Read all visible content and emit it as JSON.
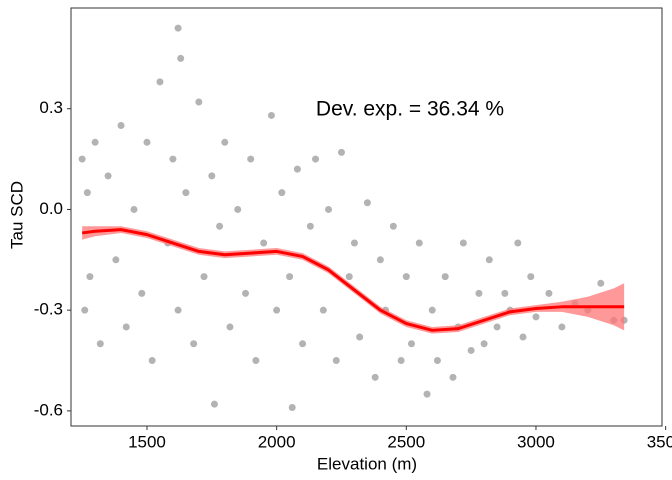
{
  "chart_data": {
    "type": "scatter",
    "annotation": "Dev. exp. = 36.34 %",
    "x_label": "Elevation (m)",
    "y_label": "Tau SCD",
    "xlim": [
      1207,
      3486
    ],
    "ylim": [
      -0.645,
      0.6
    ],
    "xticks": [
      1500,
      2000,
      2500,
      3000,
      3500
    ],
    "yticks": [
      0.3,
      {
        "value": 0,
        "label": "0.0"
      },
      -0.3,
      -0.6
    ],
    "grid": false,
    "points": {
      "color": "#b3b3b3",
      "x": [
        1250,
        1260,
        1270,
        1280,
        1300,
        1320,
        1350,
        1380,
        1400,
        1420,
        1450,
        1480,
        1500,
        1520,
        1550,
        1580,
        1600,
        1620,
        1620,
        1630,
        1650,
        1680,
        1700,
        1720,
        1750,
        1760,
        1780,
        1800,
        1820,
        1850,
        1880,
        1900,
        1920,
        1950,
        1980,
        2000,
        2020,
        2050,
        2060,
        2080,
        2100,
        2130,
        2150,
        2180,
        2200,
        2230,
        2250,
        2280,
        2300,
        2320,
        2350,
        2380,
        2400,
        2420,
        2450,
        2480,
        2500,
        2520,
        2550,
        2580,
        2600,
        2620,
        2650,
        2680,
        2700,
        2720,
        2750,
        2780,
        2800,
        2820,
        2850,
        2880,
        2900,
        2930,
        2950,
        2980,
        3000,
        3050,
        3100,
        3150,
        3200,
        3250,
        3300,
        3340
      ],
      "y": [
        0.15,
        -0.3,
        0.05,
        -0.2,
        0.2,
        -0.4,
        0.1,
        -0.15,
        0.25,
        -0.35,
        0.0,
        -0.25,
        0.2,
        -0.45,
        0.38,
        -0.1,
        0.15,
        0.54,
        -0.3,
        0.45,
        0.05,
        -0.4,
        0.32,
        -0.2,
        0.1,
        -0.58,
        -0.05,
        0.2,
        -0.35,
        0.0,
        -0.25,
        0.15,
        -0.45,
        -0.1,
        0.28,
        -0.3,
        0.05,
        -0.2,
        -0.59,
        0.12,
        -0.4,
        -0.05,
        0.15,
        -0.3,
        0.0,
        -0.45,
        0.17,
        -0.2,
        -0.1,
        -0.38,
        0.02,
        -0.5,
        -0.15,
        -0.3,
        -0.05,
        -0.45,
        -0.2,
        -0.4,
        -0.1,
        -0.55,
        -0.3,
        -0.45,
        -0.2,
        -0.5,
        -0.35,
        -0.1,
        -0.42,
        -0.25,
        -0.4,
        -0.15,
        -0.35,
        -0.25,
        -0.3,
        -0.1,
        -0.38,
        -0.2,
        -0.32,
        -0.25,
        -0.35,
        -0.28,
        -0.3,
        -0.22,
        -0.33,
        -0.33
      ]
    },
    "smooth": {
      "color": "#ff0000",
      "band_color": "#f77",
      "x": [
        1250,
        1300,
        1400,
        1500,
        1600,
        1700,
        1800,
        1900,
        2000,
        2100,
        2200,
        2300,
        2400,
        2500,
        2600,
        2700,
        2800,
        2900,
        3000,
        3100,
        3200,
        3300,
        3340
      ],
      "y": [
        -0.07,
        -0.065,
        -0.06,
        -0.075,
        -0.1,
        -0.125,
        -0.135,
        -0.13,
        -0.125,
        -0.14,
        -0.18,
        -0.24,
        -0.3,
        -0.34,
        -0.36,
        -0.355,
        -0.33,
        -0.305,
        -0.295,
        -0.29,
        -0.29,
        -0.29,
        -0.29
      ],
      "lower": [
        -0.09,
        -0.08,
        -0.07,
        -0.085,
        -0.11,
        -0.135,
        -0.145,
        -0.14,
        -0.135,
        -0.15,
        -0.19,
        -0.25,
        -0.31,
        -0.35,
        -0.37,
        -0.365,
        -0.34,
        -0.315,
        -0.305,
        -0.305,
        -0.32,
        -0.345,
        -0.36
      ],
      "upper": [
        -0.05,
        -0.05,
        -0.05,
        -0.065,
        -0.09,
        -0.115,
        -0.125,
        -0.12,
        -0.115,
        -0.13,
        -0.17,
        -0.23,
        -0.29,
        -0.33,
        -0.35,
        -0.345,
        -0.32,
        -0.295,
        -0.285,
        -0.275,
        -0.26,
        -0.235,
        -0.22
      ]
    }
  }
}
